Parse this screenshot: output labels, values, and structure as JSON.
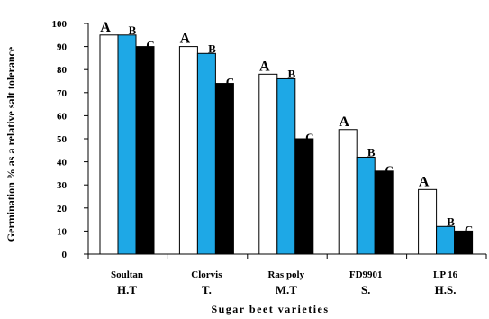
{
  "chart_data": {
    "type": "bar",
    "xlabel": "Sugar beet varieties",
    "ylabel": "Germination % as a relative salt tolerance",
    "ylim": [
      0,
      100
    ],
    "y_ticks": [
      0,
      10,
      20,
      30,
      40,
      50,
      60,
      70,
      80,
      90,
      100
    ],
    "grid": false,
    "legend": "none",
    "categories": [
      {
        "name": "Soultan",
        "group": "H.T"
      },
      {
        "name": "Clorvis",
        "group": "T."
      },
      {
        "name": "Ras poly",
        "group": "M.T"
      },
      {
        "name": "FD9901",
        "group": "S."
      },
      {
        "name": "LP 16",
        "group": "H.S."
      }
    ],
    "series": [
      {
        "values": [
          95,
          90,
          78,
          54,
          28
        ],
        "labels": [
          "A",
          "A",
          "A",
          "A",
          "A"
        ],
        "color": "#ffffff"
      },
      {
        "values": [
          95,
          87,
          76,
          42,
          12
        ],
        "labels": [
          "B",
          "B",
          "B",
          "B",
          "B"
        ],
        "color": "#1ea8e6"
      },
      {
        "values": [
          90,
          74,
          50,
          36,
          10
        ],
        "labels": [
          "C",
          "C",
          "C",
          "C",
          "C"
        ],
        "color": "#000000"
      }
    ]
  }
}
